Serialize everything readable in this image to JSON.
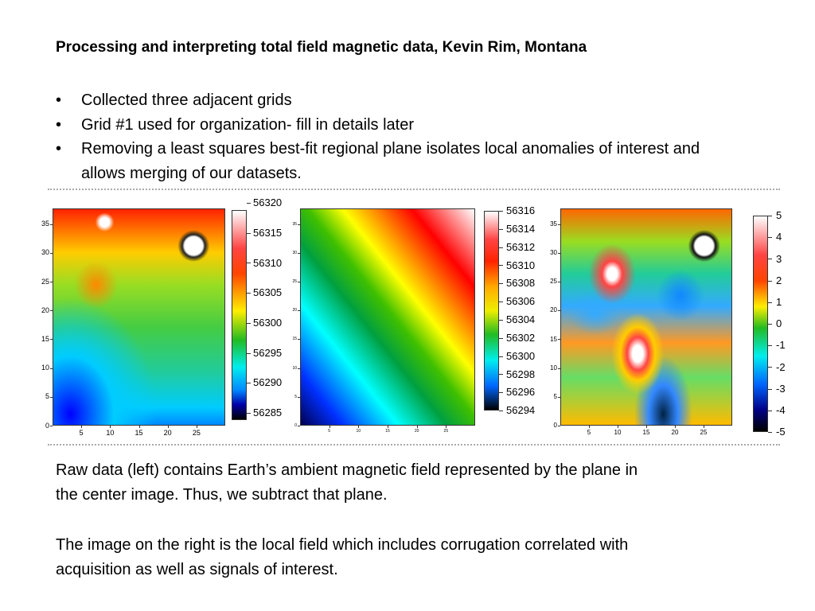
{
  "title": "Processing and interpreting total field magnetic data, Kevin Rim, Montana",
  "bullets": [
    "Collected three adjacent grids",
    "Grid #1 used for organization- fill in details later",
    "Removing a least squares best-fit regional plane isolates local anomalies of interest and allows merging of our datasets."
  ],
  "panels": [
    {
      "x_ticks": [
        5,
        10,
        15,
        20,
        25
      ],
      "y_ticks": [
        0,
        5,
        10,
        15,
        20,
        25,
        30,
        35
      ],
      "colorbar_ticks": [
        56285,
        56290,
        56295,
        56300,
        56305,
        56310,
        56315,
        56320
      ]
    },
    {
      "x_ticks": [
        5,
        10,
        15,
        20,
        25
      ],
      "y_ticks": [
        0,
        5,
        10,
        15,
        20,
        25,
        30,
        35
      ],
      "colorbar_ticks": [
        56294,
        56296,
        56298,
        56300,
        56302,
        56304,
        56306,
        56308,
        56310,
        56312,
        56314,
        56316
      ]
    },
    {
      "x_ticks": [
        5,
        10,
        15,
        20,
        25
      ],
      "y_ticks": [
        0,
        5,
        10,
        15,
        20,
        25,
        30,
        35
      ],
      "colorbar_ticks": [
        -5,
        -4,
        -3,
        -2,
        -1,
        0,
        1,
        2,
        3,
        4,
        5
      ]
    }
  ],
  "paragraphs": [
    "Raw data (left) contains Earth’s ambient magnetic field represented by the plane in the center image. Thus, we subtract that plane.",
    "The image on the right is the local field which includes corrugation correlated with acquisition as well as signals of interest."
  ]
}
